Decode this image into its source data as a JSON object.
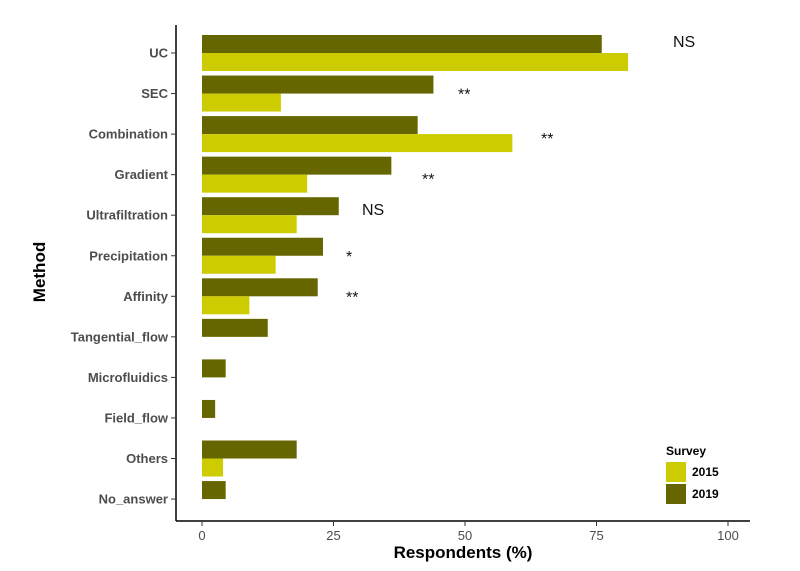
{
  "chart_data": {
    "type": "bar",
    "orientation": "horizontal",
    "categories": [
      "UC",
      "SEC",
      "Combination",
      "Gradient",
      "Ultrafiltration",
      "Precipitation",
      "Affinity",
      "Tangential_flow",
      "Microfluidics",
      "Field_flow",
      "Others",
      "No_answer"
    ],
    "series": [
      {
        "name": "2019",
        "color": "#666600",
        "values": [
          76,
          44,
          41,
          36,
          26,
          23,
          22,
          12.5,
          4.5,
          2.5,
          18,
          4.5
        ]
      },
      {
        "name": "2015",
        "color": "#cccc00",
        "values": [
          81,
          15,
          59,
          20,
          18,
          14,
          9,
          0,
          0,
          0,
          4,
          0
        ]
      }
    ],
    "annotations": [
      "NS",
      "**",
      "**",
      "**",
      "NS",
      "*",
      "**",
      "",
      "",
      "",
      "",
      ""
    ],
    "xlabel": "Respondents (%)",
    "ylabel": "Method",
    "xlim": [
      0,
      100
    ],
    "xticks": [
      "0",
      "25",
      "50",
      "75",
      "100"
    ],
    "xtick_values": [
      0,
      25,
      50,
      75,
      100
    ],
    "grid": false,
    "legend": {
      "title": "Survey",
      "placement": "bottom-right",
      "entries": [
        {
          "label": "2015",
          "color": "#cccc00"
        },
        {
          "label": "2019",
          "color": "#666600"
        }
      ]
    }
  }
}
